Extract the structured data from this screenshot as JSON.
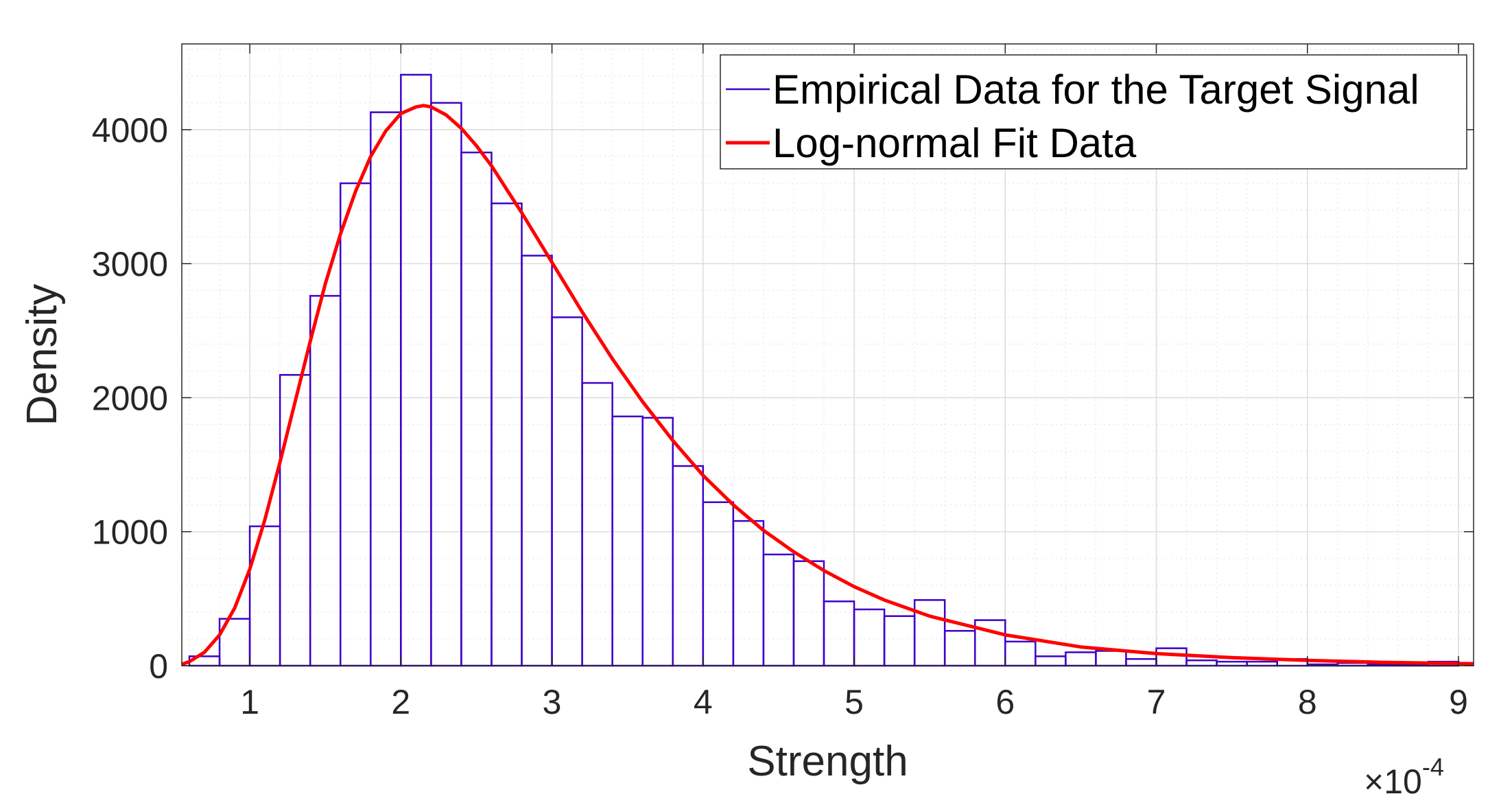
{
  "chart_data": {
    "type": "bar",
    "xlabel": "Strength",
    "ylabel": "Density",
    "x_multiplier": "×10",
    "x_multiplier_exponent": "-4",
    "xlim": [
      0.55,
      9.1
    ],
    "ylim": [
      0,
      4640
    ],
    "xticks": [
      1,
      2,
      3,
      4,
      5,
      6,
      7,
      8,
      9
    ],
    "yticks": [
      0,
      1000,
      2000,
      3000,
      4000
    ],
    "grid": true,
    "minor_grid": true,
    "legend_position": "top-right",
    "colors": {
      "histogram": "#3f00c8",
      "fit": "#ff0000",
      "grid": "#e6e6e6",
      "axes": "#262626"
    },
    "series": [
      {
        "name": "Empirical Data for the Target Signal",
        "kind": "histogram",
        "bin_start": 0.6,
        "bin_width": 0.2,
        "values": [
          70,
          350,
          1040,
          2170,
          2760,
          3600,
          4130,
          4410,
          4200,
          3830,
          3450,
          3060,
          2600,
          2110,
          1860,
          1850,
          1490,
          1220,
          1080,
          830,
          780,
          480,
          420,
          370,
          490,
          260,
          340,
          180,
          70,
          100,
          110,
          50,
          130,
          40,
          30,
          30,
          50,
          10,
          20,
          10,
          10,
          30
        ]
      },
      {
        "name": "Log-normal Fit Data",
        "kind": "line",
        "x": [
          0.55,
          0.6,
          0.7,
          0.8,
          0.9,
          1.0,
          1.1,
          1.2,
          1.3,
          1.4,
          1.5,
          1.6,
          1.7,
          1.8,
          1.9,
          2.0,
          2.1,
          2.15,
          2.2,
          2.3,
          2.4,
          2.5,
          2.6,
          2.8,
          3.0,
          3.2,
          3.4,
          3.6,
          3.8,
          4.0,
          4.2,
          4.4,
          4.6,
          4.8,
          5.0,
          5.2,
          5.5,
          6.0,
          6.5,
          7.0,
          7.5,
          8.0,
          8.5,
          9.1
        ],
        "y": [
          10,
          30,
          100,
          230,
          430,
          720,
          1090,
          1520,
          1970,
          2420,
          2850,
          3220,
          3540,
          3800,
          3990,
          4120,
          4170,
          4180,
          4170,
          4110,
          4010,
          3880,
          3730,
          3380,
          3010,
          2640,
          2290,
          1970,
          1680,
          1420,
          1200,
          1010,
          850,
          710,
          590,
          490,
          370,
          230,
          140,
          90,
          60,
          40,
          25,
          15
        ]
      }
    ]
  }
}
